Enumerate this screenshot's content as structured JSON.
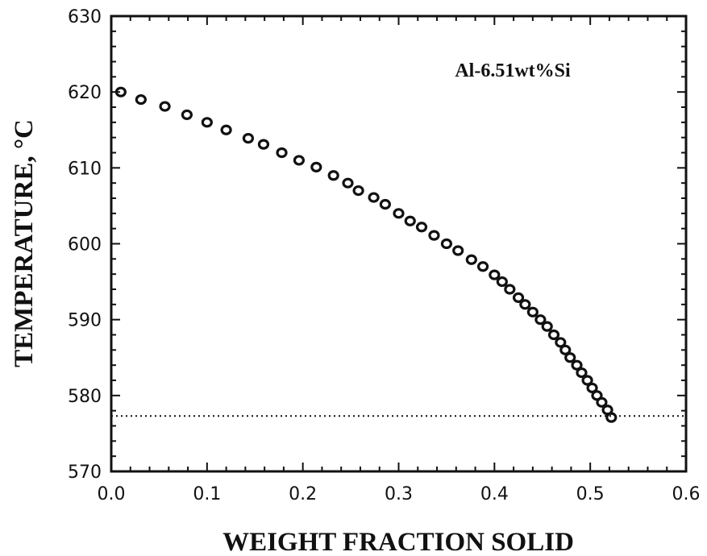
{
  "chart_data": {
    "type": "scatter",
    "title": "",
    "xlabel": "WEIGHT FRACTION SOLID",
    "ylabel": "TEMPERATURE, °C",
    "xlim": [
      0.0,
      0.6
    ],
    "ylim": [
      570,
      630
    ],
    "xticks": [
      "0.0",
      "0.1",
      "0.2",
      "0.3",
      "0.4",
      "0.5",
      "0.6"
    ],
    "yticks": [
      "570",
      "580",
      "590",
      "600",
      "610",
      "620",
      "630"
    ],
    "annotation": "Al-6.51wt%Si",
    "reference_line": {
      "style": "dotted",
      "y": 577.3
    },
    "grid": false,
    "series": [
      {
        "marker": "open-circle",
        "points": [
          [
            0.01,
            620.0
          ],
          [
            0.031,
            619.0
          ],
          [
            0.056,
            618.1
          ],
          [
            0.079,
            617.0
          ],
          [
            0.1,
            616.0
          ],
          [
            0.12,
            615.0
          ],
          [
            0.143,
            613.9
          ],
          [
            0.159,
            613.1
          ],
          [
            0.178,
            612.0
          ],
          [
            0.196,
            611.0
          ],
          [
            0.214,
            610.1
          ],
          [
            0.232,
            609.0
          ],
          [
            0.247,
            608.0
          ],
          [
            0.258,
            607.0
          ],
          [
            0.274,
            606.1
          ],
          [
            0.286,
            605.2
          ],
          [
            0.3,
            604.0
          ],
          [
            0.312,
            603.0
          ],
          [
            0.324,
            602.2
          ],
          [
            0.337,
            601.1
          ],
          [
            0.35,
            600.0
          ],
          [
            0.362,
            599.1
          ],
          [
            0.376,
            597.9
          ],
          [
            0.388,
            597.0
          ],
          [
            0.4,
            595.9
          ],
          [
            0.408,
            595.0
          ],
          [
            0.416,
            594.0
          ],
          [
            0.425,
            592.9
          ],
          [
            0.432,
            592.0
          ],
          [
            0.44,
            591.0
          ],
          [
            0.448,
            590.0
          ],
          [
            0.455,
            589.1
          ],
          [
            0.462,
            588.0
          ],
          [
            0.469,
            587.0
          ],
          [
            0.474,
            586.0
          ],
          [
            0.479,
            585.0
          ],
          [
            0.486,
            584.0
          ],
          [
            0.491,
            583.0
          ],
          [
            0.497,
            582.0
          ],
          [
            0.502,
            581.0
          ],
          [
            0.507,
            580.0
          ],
          [
            0.512,
            579.1
          ],
          [
            0.518,
            578.1
          ],
          [
            0.522,
            577.1
          ]
        ]
      }
    ]
  }
}
